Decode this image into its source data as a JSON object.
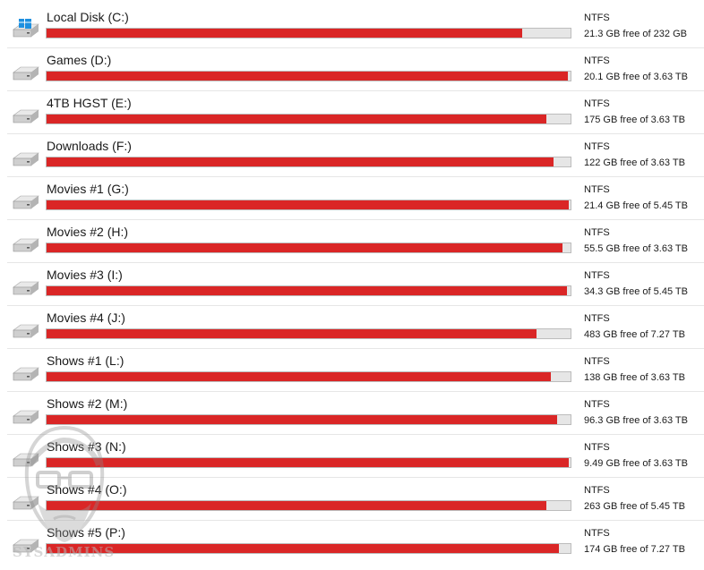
{
  "colors": {
    "bar_used": "#da2626",
    "bar_free": "#e6e6e6",
    "win_logo": "#1e90e0"
  },
  "drives": [
    {
      "name": "Local Disk (C:)",
      "fs": "NTFS",
      "space": "21.3 GB free of 232 GB",
      "used_fraction": 0.908,
      "icon": "windows-drive-icon"
    },
    {
      "name": "Games (D:)",
      "fs": "NTFS",
      "space": "20.1 GB free of 3.63 TB",
      "used_fraction": 0.995,
      "icon": "drive-icon"
    },
    {
      "name": "4TB HGST (E:)",
      "fs": "NTFS",
      "space": "175 GB free of 3.63 TB",
      "used_fraction": 0.953,
      "icon": "drive-icon"
    },
    {
      "name": "Downloads (F:)",
      "fs": "NTFS",
      "space": "122 GB free of 3.63 TB",
      "used_fraction": 0.967,
      "icon": "drive-icon"
    },
    {
      "name": "Movies #1 (G:)",
      "fs": "NTFS",
      "space": "21.4 GB free of 5.45 TB",
      "used_fraction": 0.996,
      "icon": "drive-icon"
    },
    {
      "name": "Movies #2 (H:)",
      "fs": "NTFS",
      "space": "55.5 GB free of 3.63 TB",
      "used_fraction": 0.985,
      "icon": "drive-icon"
    },
    {
      "name": "Movies #3 (I:)",
      "fs": "NTFS",
      "space": "34.3 GB free of 5.45 TB",
      "used_fraction": 0.994,
      "icon": "drive-icon"
    },
    {
      "name": "Movies #4 (J:)",
      "fs": "NTFS",
      "space": "483 GB free of 7.27 TB",
      "used_fraction": 0.935,
      "icon": "drive-icon"
    },
    {
      "name": "Shows #1 (L:)",
      "fs": "NTFS",
      "space": "138 GB free of 3.63 TB",
      "used_fraction": 0.963,
      "icon": "drive-icon"
    },
    {
      "name": "Shows #2 (M:)",
      "fs": "NTFS",
      "space": "96.3 GB free of 3.63 TB",
      "used_fraction": 0.974,
      "icon": "drive-icon"
    },
    {
      "name": "Shows #3 (N:)",
      "fs": "NTFS",
      "space": "9.49 GB free of 3.63 TB",
      "used_fraction": 0.997,
      "icon": "drive-icon"
    },
    {
      "name": "Shows #4 (O:)",
      "fs": "NTFS",
      "space": "263 GB free of 5.45 TB",
      "used_fraction": 0.953,
      "icon": "drive-icon"
    },
    {
      "name": "Shows #5 (P:)",
      "fs": "NTFS",
      "space": "174 GB free of 7.27 TB",
      "used_fraction": 0.977,
      "icon": "drive-icon"
    }
  ],
  "watermark": {
    "text": "SYSADMINS"
  }
}
